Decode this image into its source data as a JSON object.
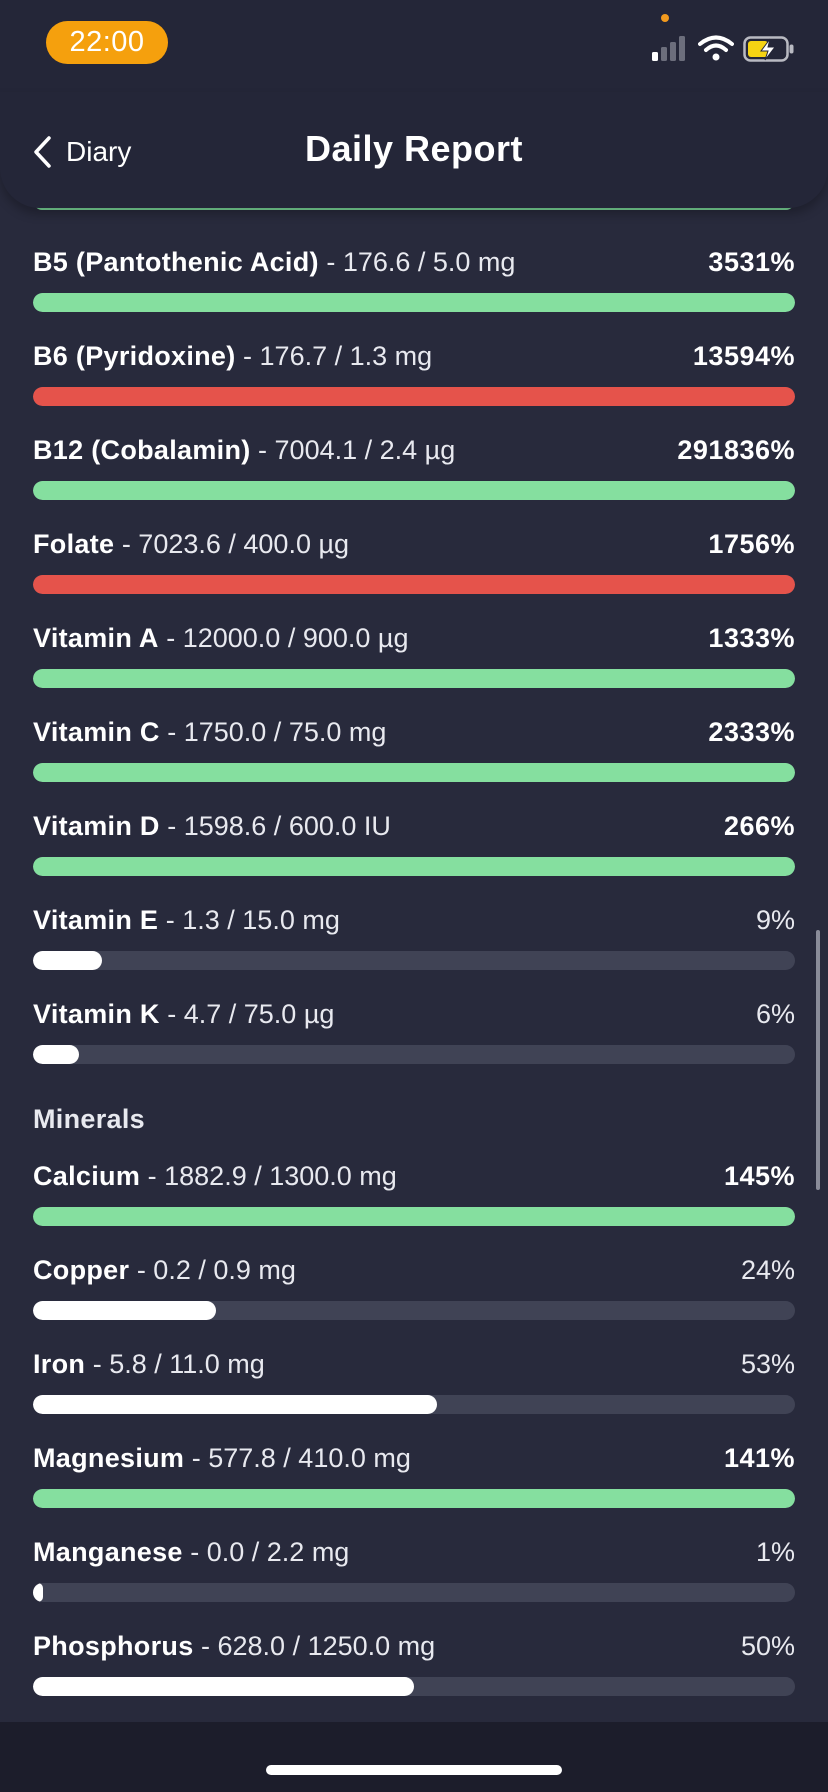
{
  "status_bar": {
    "time": "22:00",
    "signal_icon": "cellular-signal-icon",
    "wifi_icon": "wifi-icon",
    "battery_icon": "battery-charging-icon"
  },
  "header": {
    "back_label": "Diary",
    "back_icon": "chevron-left-icon",
    "title": "Daily Report"
  },
  "colors": {
    "accent_green": "#85df9f",
    "alert_red": "#e5534b",
    "track": "#404355",
    "background": "#282a3c",
    "time_pill": "#f5a00d"
  },
  "vitamins": [
    {
      "name": "B5 (Pantothenic Acid)",
      "amount": " - 176.6 / 5.0 mg",
      "percent": "3531%",
      "status": "green",
      "progress": 1.0
    },
    {
      "name": "B6 (Pyridoxine)",
      "amount": " - 176.7 / 1.3 mg",
      "percent": "13594%",
      "status": "red",
      "progress": 1.0
    },
    {
      "name": "B12 (Cobalamin)",
      "amount": " - 7004.1 / 2.4 µg",
      "percent": "291836%",
      "status": "green",
      "progress": 1.0
    },
    {
      "name": "Folate",
      "amount": " - 7023.6 / 400.0 µg",
      "percent": "1756%",
      "status": "red",
      "progress": 1.0
    },
    {
      "name": "Vitamin A",
      "amount": " - 12000.0 / 900.0 µg",
      "percent": "1333%",
      "status": "green",
      "progress": 1.0
    },
    {
      "name": "Vitamin C",
      "amount": " - 1750.0 / 75.0 mg",
      "percent": "2333%",
      "status": "green",
      "progress": 1.0
    },
    {
      "name": "Vitamin D",
      "amount": " - 1598.6 / 600.0 IU",
      "percent": "266%",
      "status": "green",
      "progress": 1.0
    },
    {
      "name": "Vitamin E",
      "amount": " - 1.3 / 15.0 mg",
      "percent": "9%",
      "status": "under",
      "progress": 0.09
    },
    {
      "name": "Vitamin K",
      "amount": " - 4.7 / 75.0 µg",
      "percent": "6%",
      "status": "under",
      "progress": 0.06
    }
  ],
  "minerals_label": "Minerals",
  "minerals": [
    {
      "name": "Calcium",
      "amount": " - 1882.9 / 1300.0 mg",
      "percent": "145%",
      "status": "green",
      "progress": 1.0
    },
    {
      "name": "Copper",
      "amount": " - 0.2 / 0.9 mg",
      "percent": "24%",
      "status": "under",
      "progress": 0.24
    },
    {
      "name": "Iron",
      "amount": " - 5.8 / 11.0 mg",
      "percent": "53%",
      "status": "under",
      "progress": 0.53
    },
    {
      "name": "Magnesium",
      "amount": " - 577.8 / 410.0 mg",
      "percent": "141%",
      "status": "green",
      "progress": 1.0
    },
    {
      "name": "Manganese",
      "amount": " - 0.0 / 2.2 mg",
      "percent": "1%",
      "status": "under",
      "progress": 0.01
    },
    {
      "name": "Phosphorus",
      "amount": " - 628.0 / 1250.0 mg",
      "percent": "50%",
      "status": "under",
      "progress": 0.5
    }
  ]
}
